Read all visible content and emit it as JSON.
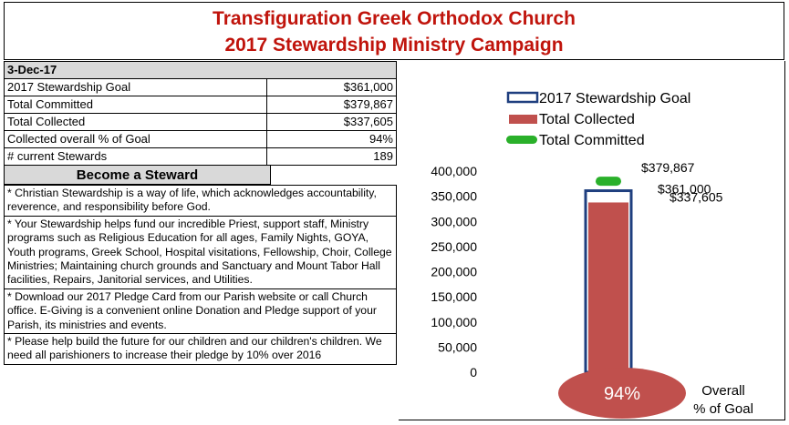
{
  "title_line1": "Transfiguration Greek Orthodox Church",
  "title_line2": "2017 Stewardship Ministry Campaign",
  "date": "3-Dec-17",
  "stats": [
    {
      "label": "2017 Stewardship Goal",
      "value": "$361,000"
    },
    {
      "label": "Total Committed",
      "value": "$379,867"
    },
    {
      "label": "Total Collected",
      "value": "$337,605"
    },
    {
      "label": "Collected overall % of Goal",
      "value": "94%"
    },
    {
      "label": "# current Stewards",
      "value": "189"
    }
  ],
  "become_header": "Become a Steward",
  "notes": [
    "* Christian Stewardship is a way of life, which acknowledges accountability, reverence, and responsibility before God.",
    "* Your Stewardship helps fund our incredible Priest, support staff, Ministry programs such as Religious Education for all ages, Family Nights, GOYA, Youth programs, Greek School, Hospital visitations, Fellowship, Choir, College Ministries; Maintaining church grounds and Sanctuary and Mount Tabor Hall facilities, Repairs, Janitorial services, and Utilities.",
    "* Download our 2017 Pledge Card from our Parish website or call Church office.  E-Giving is a convenient online Donation and Pledge support of your Parish, its ministries and events.",
    "* Please help build the future for our children and our children's children. We need all parishioners to increase their pledge by 10% over 2016"
  ],
  "chart_data": {
    "type": "bar",
    "ylim": [
      0,
      400000
    ],
    "yticks": [
      "0",
      "50,000",
      "100,000",
      "150,000",
      "200,000",
      "250,000",
      "300,000",
      "350,000",
      "400,000"
    ],
    "series": [
      {
        "name": "2017 Stewardship Goal",
        "value": 361000,
        "label": "$361,000",
        "color": "#1f3f7f"
      },
      {
        "name": "Total Collected",
        "value": 337605,
        "label": "$337,605",
        "color": "#c0504d"
      },
      {
        "name": "Total Committed",
        "value": 379867,
        "label": "$379,867",
        "color": "#2ab02a"
      }
    ],
    "percent_label": "94%",
    "overall_label_1": "Overall",
    "overall_label_2": "% of Goal",
    "legend_placement": "top"
  }
}
